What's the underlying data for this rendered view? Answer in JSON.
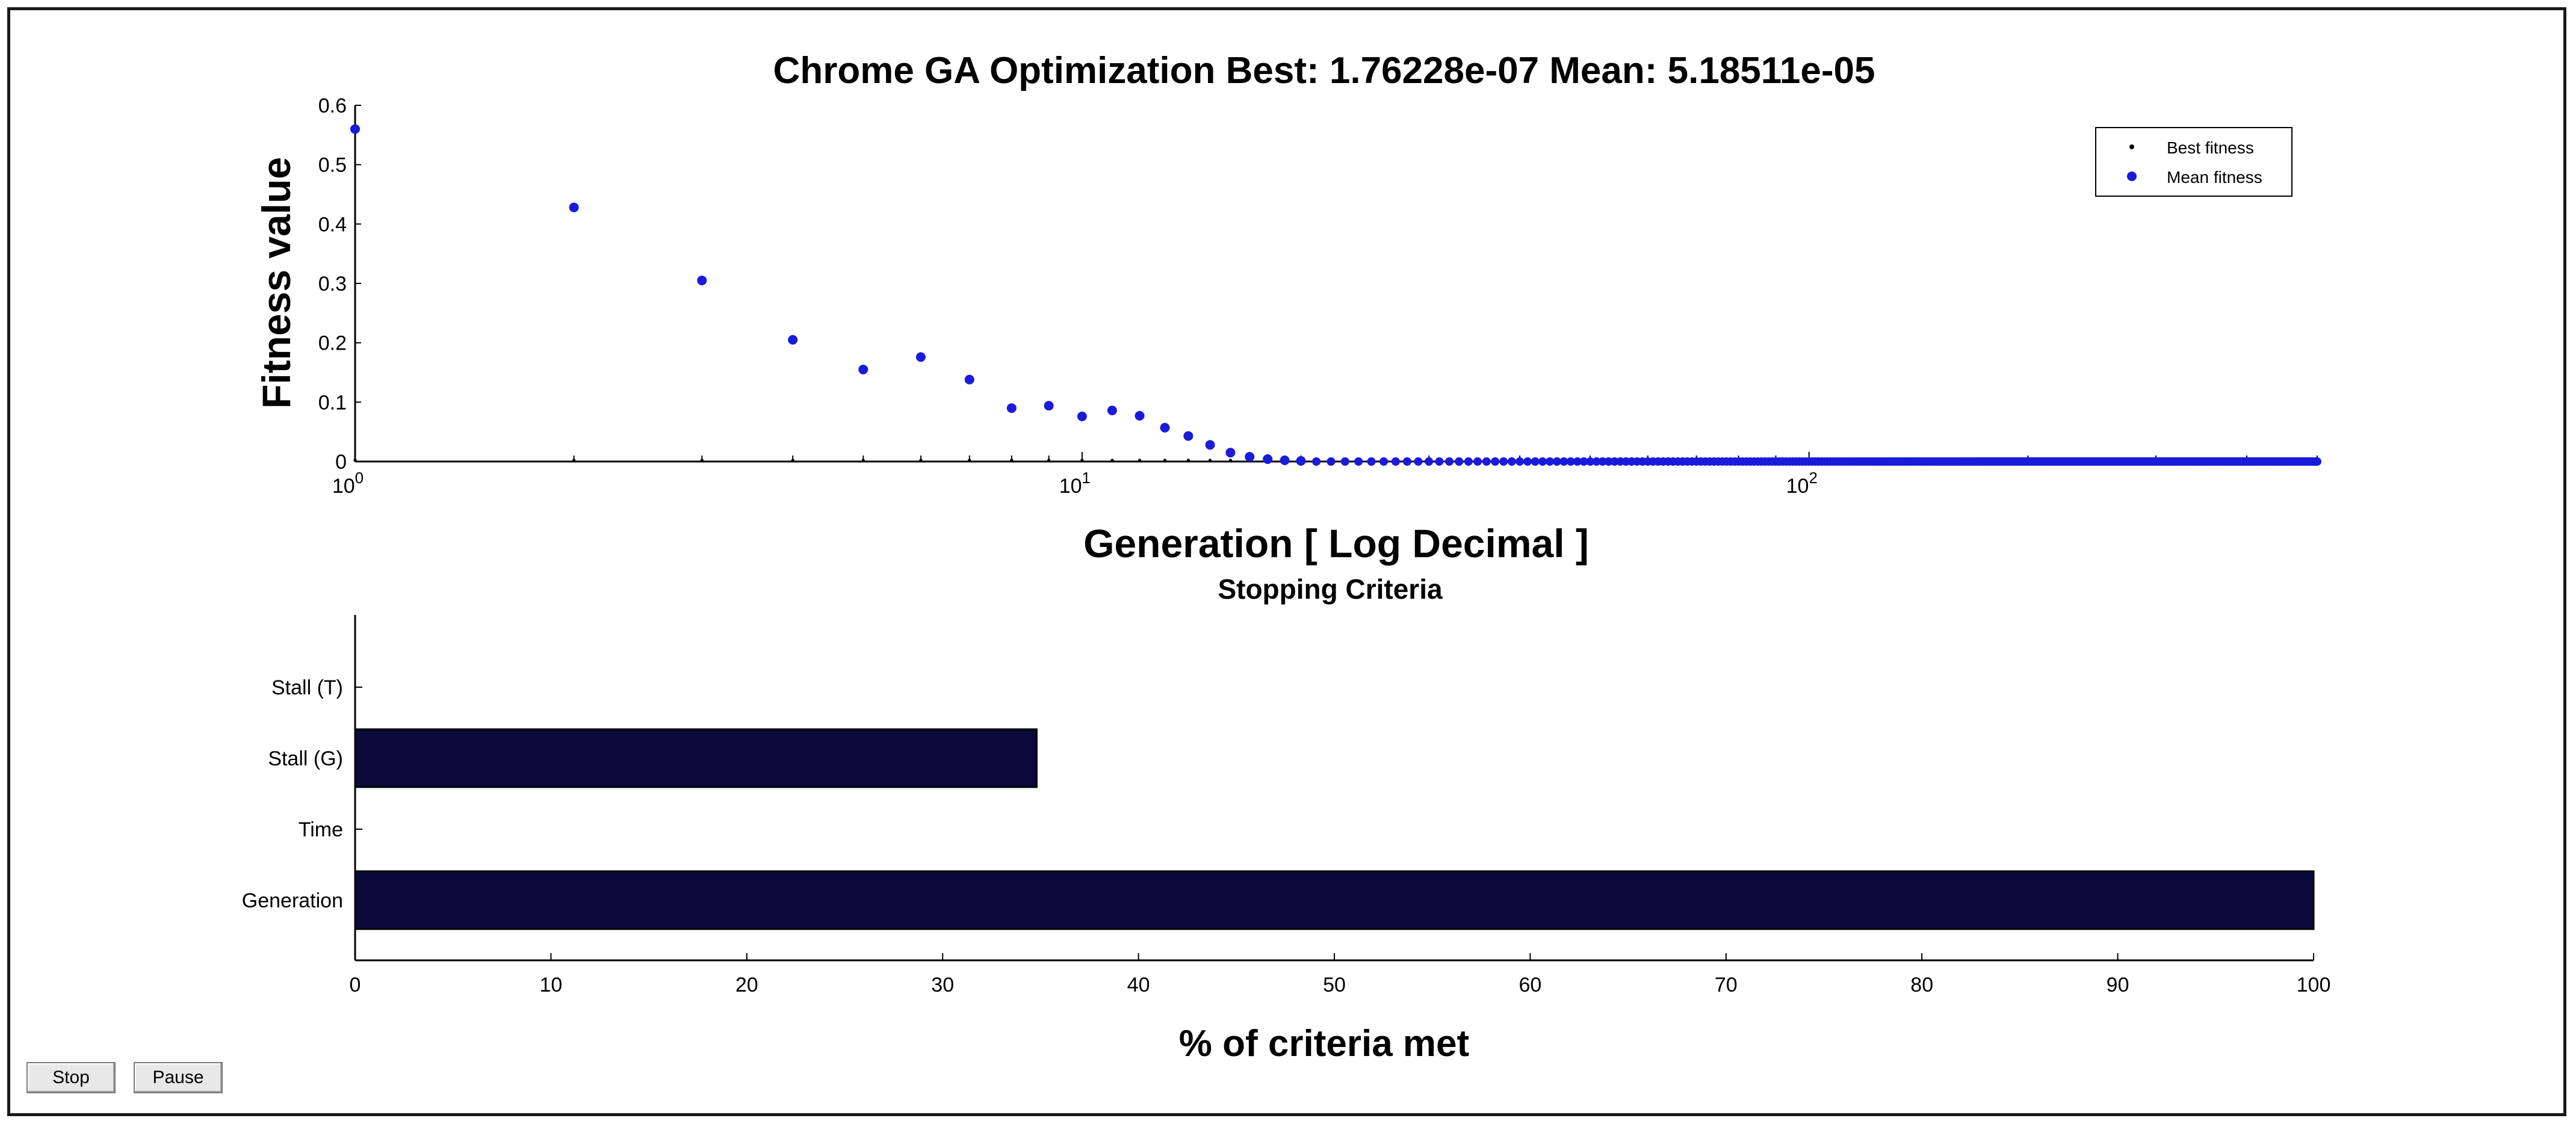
{
  "chart_data": [
    {
      "type": "scatter",
      "title": "Chrome GA Optimization Best: 1.76228e-07 Mean: 5.18511e-05",
      "xlabel": "Generation [ Log Decimal ]",
      "ylabel": "Fitness value",
      "xscale": "log",
      "xlim": [
        1,
        500
      ],
      "ylim": [
        0,
        0.6
      ],
      "x_ticks": [
        1,
        10,
        100
      ],
      "x_tick_base": "10",
      "x_tick_exponents": [
        "0",
        "1",
        "2"
      ],
      "y_ticks": [
        "0",
        "0.1",
        "0.2",
        "0.3",
        "0.4",
        "0.5",
        "0.6"
      ],
      "legend": {
        "placement": "top-right",
        "entries": [
          "Best fitness",
          "Mean fitness"
        ]
      },
      "series": [
        {
          "name": "Best fitness",
          "color": "#000000",
          "generations": [
            1,
            500
          ],
          "value": 0,
          "note": "near zero for all generations"
        },
        {
          "name": "Mean fitness",
          "color": "#1a1adc",
          "x": [
            1,
            2,
            3,
            4,
            5,
            6,
            7,
            8,
            9,
            10,
            11,
            12,
            13,
            14,
            15,
            16,
            17,
            18,
            19,
            20
          ],
          "y": [
            0.56,
            0.428,
            0.305,
            0.205,
            0.155,
            0.176,
            0.138,
            0.09,
            0.094,
            0.076,
            0.086,
            0.077,
            0.057,
            0.043,
            0.028,
            0.015,
            0.008,
            0.004,
            0.002,
            0.001
          ],
          "tail_value": 0,
          "tail_until": 500
        }
      ]
    },
    {
      "type": "bar",
      "orientation": "horizontal",
      "title": "Stopping Criteria",
      "xlabel": "% of criteria met",
      "categories": [
        "Stall (T)",
        "Stall (G)",
        "Time",
        "Generation"
      ],
      "values": [
        0,
        34.8,
        0,
        100
      ],
      "xlim": [
        0,
        100
      ],
      "x_ticks": [
        "0",
        "10",
        "20",
        "30",
        "40",
        "50",
        "60",
        "70",
        "80",
        "90",
        "100"
      ],
      "bar_color": "#0a0a3a"
    }
  ],
  "controls": {
    "stop_label": "Stop",
    "pause_label": "Pause"
  }
}
